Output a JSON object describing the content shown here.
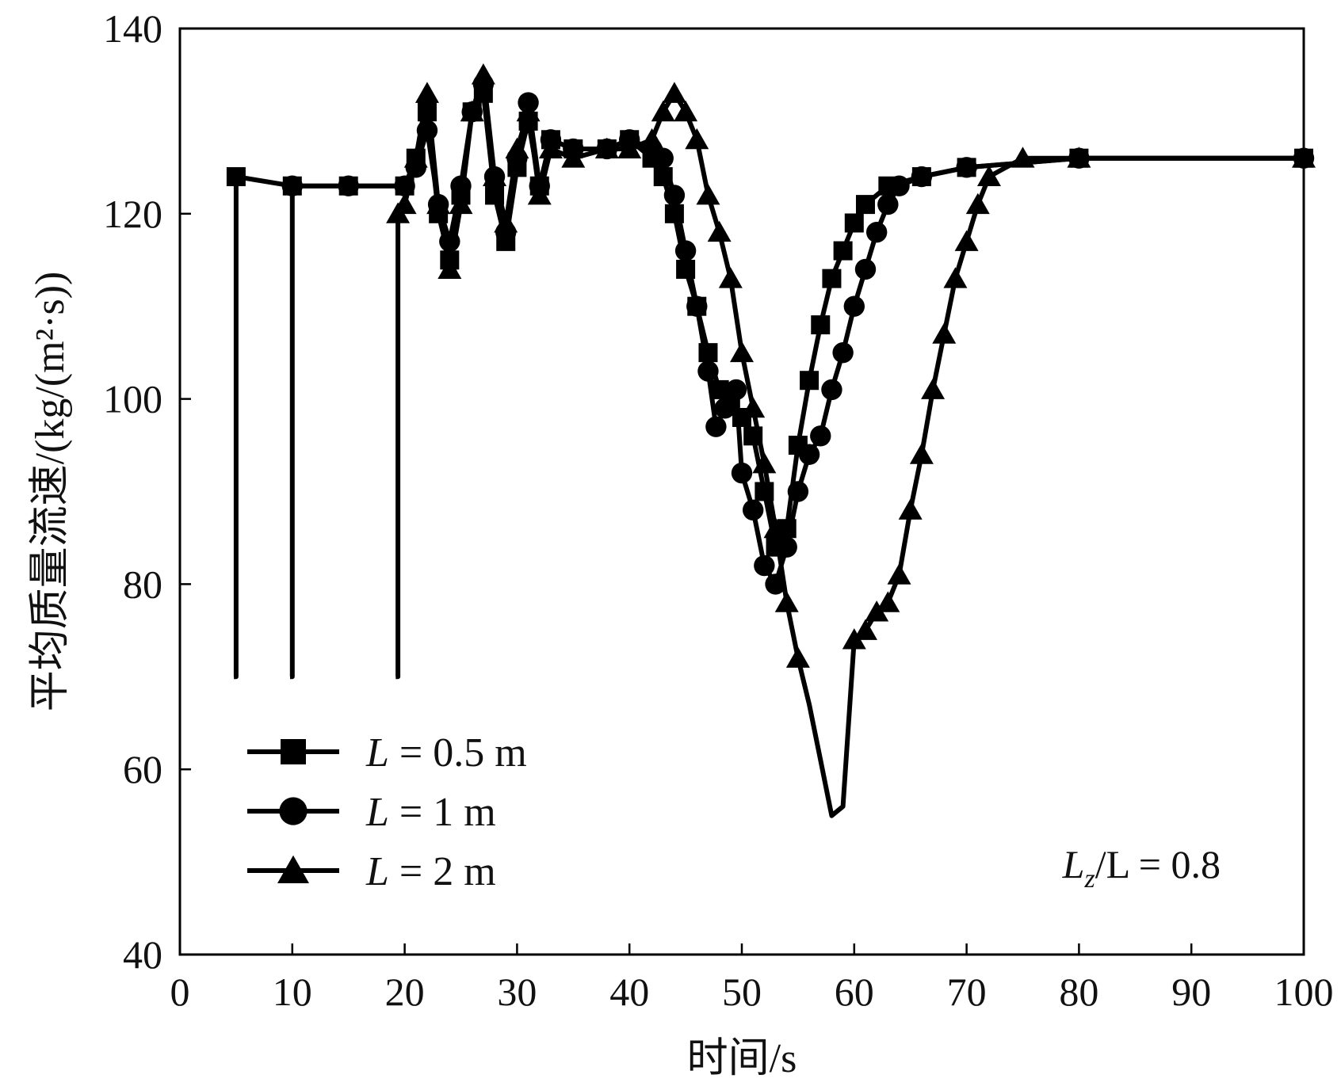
{
  "chart_data": {
    "type": "line",
    "title": "",
    "xlabel": "时间/s",
    "ylabel": "平均质量流速/(kg/(m²·s))",
    "xlim": [
      0,
      100
    ],
    "ylim": [
      40,
      140
    ],
    "xticks": [
      0,
      10,
      20,
      30,
      40,
      50,
      60,
      70,
      80,
      90,
      100
    ],
    "yticks": [
      40,
      60,
      80,
      100,
      120,
      140
    ],
    "grid": false,
    "legend_position": "bottom-left",
    "annotation": {
      "main": "L",
      "sub": "z",
      "rest": "/L = 0.8"
    },
    "series": [
      {
        "name": "L = 0.5 m",
        "legend_prefix": "L",
        "legend_suffix": " = 0.5 m",
        "marker": "square",
        "points": [
          [
            4.8,
            70
          ],
          [
            5,
            70
          ],
          [
            5,
            124
          ],
          [
            10,
            123
          ],
          [
            15,
            123
          ],
          [
            20,
            123
          ],
          [
            21,
            126
          ],
          [
            22,
            131
          ],
          [
            23,
            120
          ],
          [
            24,
            115
          ],
          [
            25,
            122
          ],
          [
            26,
            131
          ],
          [
            27,
            133
          ],
          [
            28,
            122
          ],
          [
            29,
            117
          ],
          [
            30,
            125
          ],
          [
            31,
            130
          ],
          [
            32,
            123
          ],
          [
            33,
            128
          ],
          [
            35,
            127
          ],
          [
            38,
            127
          ],
          [
            40,
            128
          ],
          [
            42,
            126
          ],
          [
            43,
            124
          ],
          [
            44,
            120
          ],
          [
            45,
            114
          ],
          [
            46,
            110
          ],
          [
            47,
            105
          ],
          [
            48,
            101
          ],
          [
            49,
            100
          ],
          [
            50,
            98
          ],
          [
            51,
            96
          ],
          [
            52,
            90
          ],
          [
            53,
            84
          ],
          [
            54,
            86
          ],
          [
            55,
            95
          ],
          [
            56,
            102
          ],
          [
            57,
            108
          ],
          [
            58,
            113
          ],
          [
            59,
            116
          ],
          [
            60,
            119
          ],
          [
            61,
            121
          ],
          [
            63,
            123
          ],
          [
            66,
            124
          ],
          [
            70,
            125
          ],
          [
            80,
            126
          ],
          [
            100,
            126
          ]
        ]
      },
      {
        "name": "L = 1 m",
        "legend_prefix": "L",
        "legend_suffix": " = 1 m",
        "marker": "circle",
        "points": [
          [
            9.8,
            70
          ],
          [
            10,
            70
          ],
          [
            10,
            123
          ],
          [
            15,
            123
          ],
          [
            20,
            123
          ],
          [
            21,
            125
          ],
          [
            22,
            129
          ],
          [
            23,
            121
          ],
          [
            24,
            117
          ],
          [
            25,
            123
          ],
          [
            26,
            131
          ],
          [
            27,
            134
          ],
          [
            28,
            124
          ],
          [
            29,
            118
          ],
          [
            30,
            126
          ],
          [
            31,
            132
          ],
          [
            32,
            123
          ],
          [
            33,
            128
          ],
          [
            35,
            127
          ],
          [
            38,
            127
          ],
          [
            40,
            128
          ],
          [
            42,
            127
          ],
          [
            43,
            126
          ],
          [
            44,
            122
          ],
          [
            45,
            116
          ],
          [
            46,
            110
          ],
          [
            47,
            103
          ],
          [
            47.7,
            97
          ],
          [
            48.5,
            99
          ],
          [
            49.5,
            101
          ],
          [
            50,
            92
          ],
          [
            51,
            88
          ],
          [
            52,
            82
          ],
          [
            53,
            80
          ],
          [
            54,
            84
          ],
          [
            55,
            90
          ],
          [
            56,
            94
          ],
          [
            57,
            96
          ],
          [
            58,
            101
          ],
          [
            59,
            105
          ],
          [
            60,
            110
          ],
          [
            61,
            114
          ],
          [
            62,
            118
          ],
          [
            63,
            121
          ],
          [
            64,
            123
          ],
          [
            66,
            124
          ],
          [
            70,
            125
          ],
          [
            80,
            126
          ],
          [
            100,
            126
          ]
        ]
      },
      {
        "name": "L = 2 m",
        "legend_prefix": "L",
        "legend_suffix": " = 2 m",
        "marker": "triangle",
        "points": [
          [
            19.2,
            70
          ],
          [
            19.4,
            70
          ],
          [
            19.4,
            120
          ],
          [
            20,
            121
          ],
          [
            21,
            126
          ],
          [
            22,
            133
          ],
          [
            23,
            121
          ],
          [
            24,
            114
          ],
          [
            25,
            121
          ],
          [
            26,
            131
          ],
          [
            27,
            135
          ],
          [
            28,
            124
          ],
          [
            29,
            119
          ],
          [
            30,
            127
          ],
          [
            31,
            131
          ],
          [
            32,
            122
          ],
          [
            33,
            127
          ],
          [
            35,
            126
          ],
          [
            38,
            127
          ],
          [
            40,
            127
          ],
          [
            42,
            128
          ],
          [
            43,
            131
          ],
          [
            44,
            133
          ],
          [
            45,
            131
          ],
          [
            46,
            128
          ],
          [
            47,
            122
          ],
          [
            48,
            118
          ],
          [
            49,
            113
          ],
          [
            50,
            105
          ],
          [
            51,
            99
          ],
          [
            52,
            93
          ],
          [
            53,
            86
          ],
          [
            54,
            78
          ],
          [
            55,
            72
          ],
          [
            56,
            67
          ],
          [
            57,
            61
          ],
          [
            58,
            55
          ],
          [
            59,
            56
          ],
          [
            60,
            74
          ],
          [
            61,
            75
          ],
          [
            62,
            77
          ],
          [
            63,
            78
          ],
          [
            64,
            81
          ],
          [
            65,
            88
          ],
          [
            66,
            94
          ],
          [
            67,
            101
          ],
          [
            68,
            107
          ],
          [
            69,
            113
          ],
          [
            70,
            117
          ],
          [
            71,
            121
          ],
          [
            72,
            124
          ],
          [
            75,
            126
          ],
          [
            80,
            126
          ],
          [
            100,
            126
          ]
        ]
      }
    ]
  }
}
